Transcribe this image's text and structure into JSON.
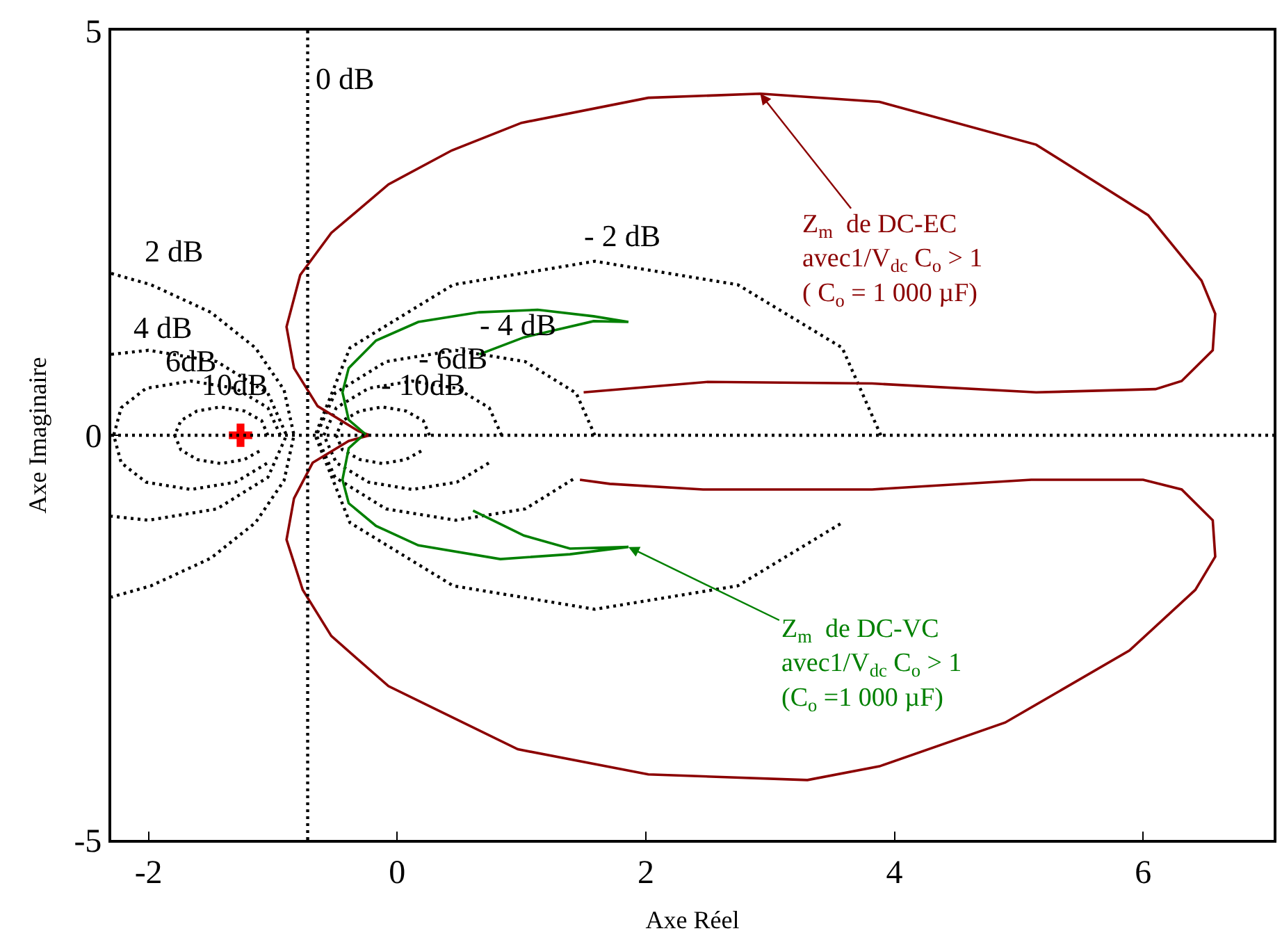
{
  "chart_data": {
    "type": "line",
    "xlabel": "Axe Réel",
    "ylabel": "Axe Imaginaire",
    "xlim": [
      -2.3,
      7.05
    ],
    "ylim": [
      -5,
      5
    ],
    "xticks": [
      -2,
      0,
      2,
      4,
      6
    ],
    "yticks": [
      -5,
      0,
      5
    ],
    "legend": false,
    "series": [
      {
        "name": "2 dB",
        "line_style": "dotted",
        "color": "#000000",
        "x": [
          -2.3,
          -1.98,
          -1.5,
          -1.14,
          -0.91,
          -0.83,
          -0.91,
          -1.14,
          -1.5,
          -1.98,
          -2.3
        ],
        "values": [
          2.0,
          1.86,
          1.52,
          1.08,
          0.56,
          0,
          -0.56,
          -1.08,
          -1.52,
          -1.86,
          -2.0
        ]
      },
      {
        "name": "4 dB",
        "line_style": "dotted",
        "color": "#000000",
        "x": [
          -2.3,
          -2.0,
          -1.45,
          -1.04,
          -0.89,
          -1.04,
          -1.45,
          -2.0,
          -2.3
        ],
        "values": [
          1.0,
          1.05,
          0.91,
          0.52,
          0,
          -0.52,
          -0.91,
          -1.05,
          -1.0
        ]
      },
      {
        "name": "6dB",
        "line_style": "dotted",
        "color": "#000000",
        "x": [
          -0.94,
          -1.04,
          -1.3,
          -1.66,
          -2.02,
          -2.22,
          -2.28,
          -2.22,
          -2.02,
          -1.66,
          -1.3,
          -1.04
        ],
        "values": [
          0,
          0.34,
          0.58,
          0.67,
          0.58,
          0.34,
          0,
          -0.34,
          -0.58,
          -0.67,
          -0.58,
          -0.34
        ]
      },
      {
        "name": "10dB",
        "line_style": "dotted",
        "color": "#000000",
        "x": [
          -1.04,
          -1.09,
          -1.23,
          -1.42,
          -1.61,
          -1.74,
          -1.79,
          -1.74,
          -1.61,
          -1.42,
          -1.23,
          -1.09
        ],
        "values": [
          0,
          0.18,
          0.3,
          0.35,
          0.3,
          0.18,
          0,
          -0.18,
          -0.3,
          -0.35,
          -0.3,
          -0.18
        ]
      },
      {
        "name": "- 2 dB",
        "line_style": "dotted",
        "color": "#000000",
        "x": [
          3.89,
          3.58,
          2.74,
          1.59,
          0.45,
          -0.38,
          -0.66,
          -0.38,
          0.45,
          1.59,
          2.74,
          3.58
        ],
        "values": [
          0,
          1.08,
          1.86,
          2.15,
          1.86,
          1.08,
          0,
          -1.08,
          -1.86,
          -2.15,
          -1.86,
          -1.08
        ]
      },
      {
        "name": "- 4 dB",
        "line_style": "dotted",
        "color": "#000000",
        "x": [
          1.59,
          1.44,
          1.03,
          0.47,
          -0.09,
          -0.5,
          -0.65,
          -0.5,
          -0.09,
          0.47,
          1.03,
          1.44
        ],
        "values": [
          0,
          0.52,
          0.91,
          1.05,
          0.91,
          0.52,
          0,
          -0.52,
          -0.91,
          -1.05,
          -0.91,
          -0.52
        ]
      },
      {
        "name": "- 6dB",
        "line_style": "dotted",
        "color": "#000000",
        "x": [
          0.84,
          0.74,
          0.48,
          0.12,
          -0.23,
          -0.49,
          -0.59,
          -0.49,
          -0.23,
          0.12,
          0.48,
          0.74
        ],
        "values": [
          0,
          0.34,
          0.58,
          0.67,
          0.58,
          0.34,
          0,
          -0.34,
          -0.58,
          -0.67,
          -0.58,
          -0.34
        ]
      },
      {
        "name": "- 10dB",
        "line_style": "dotted",
        "color": "#000000",
        "x": [
          0.26,
          0.21,
          0.07,
          -0.12,
          -0.3,
          -0.44,
          -0.49,
          -0.44,
          -0.3,
          -0.12,
          0.07,
          0.21
        ],
        "values": [
          0,
          0.18,
          0.3,
          0.35,
          0.3,
          0.18,
          0,
          -0.18,
          -0.3,
          -0.35,
          -0.3,
          -0.18
        ]
      },
      {
        "name": "Z$_{m}$  de DC-EC\navec1/V$_{dc}$ C$_{o}$ > 1\n( C$_{o}$ = 1 000 µF)",
        "line_style": "solid",
        "color": "#8b0000",
        "x": [
          1.5,
          2.5,
          3.82,
          5.14,
          6.1,
          6.31,
          6.56,
          6.58,
          6.47,
          6.04,
          5.14,
          3.88,
          2.92,
          2.02,
          1.0,
          0.44,
          -0.07,
          -0.53,
          -0.78,
          -0.89,
          -0.83,
          -0.64,
          -0.31,
          -0.22,
          -0.39,
          -0.68,
          -0.83,
          -0.89,
          -0.76,
          -0.53,
          -0.07,
          0.97,
          2.02,
          3.3,
          3.88,
          4.89,
          5.89,
          6.42,
          6.58,
          6.56,
          6.31,
          6.0,
          5.1,
          3.82,
          2.46,
          1.71,
          1.47
        ],
        "values": [
          0.53,
          0.66,
          0.64,
          0.53,
          0.57,
          0.67,
          1.05,
          1.5,
          1.91,
          2.72,
          3.59,
          4.12,
          4.22,
          4.17,
          3.86,
          3.52,
          3.1,
          2.5,
          1.98,
          1.34,
          0.83,
          0.36,
          0.05,
          0,
          -0.07,
          -0.34,
          -0.78,
          -1.29,
          -1.91,
          -2.48,
          -3.1,
          -3.88,
          -4.19,
          -4.26,
          -4.09,
          -3.55,
          -2.66,
          -1.91,
          -1.5,
          -1.05,
          -0.67,
          -0.55,
          -0.55,
          -0.67,
          -0.67,
          -0.6,
          -0.55
        ]
      },
      {
        "name": "Z$_{m}$  de DC-VC\navec1/V$_{dc}$ C$_{o}$ > 1\n(C$_{o}$ =1 000 µF)",
        "line_style": "solid",
        "color": "#008000",
        "x": [
          0.66,
          1.02,
          1.58,
          1.86,
          1.58,
          1.13,
          0.66,
          0.17,
          -0.17,
          -0.39,
          -0.44,
          -0.39,
          -0.26,
          -0.39,
          -0.44,
          -0.39,
          -0.17,
          0.17,
          0.83,
          1.39,
          1.86,
          1.39,
          1.02,
          0.61
        ],
        "values": [
          1.0,
          1.21,
          1.41,
          1.4,
          1.47,
          1.55,
          1.52,
          1.4,
          1.17,
          0.83,
          0.53,
          0.19,
          0.02,
          -0.16,
          -0.55,
          -0.84,
          -1.12,
          -1.36,
          -1.53,
          -1.47,
          -1.38,
          -1.4,
          -1.24,
          -0.93
        ]
      },
      {
        "type": "scatter",
        "marker": "cross",
        "color": "#ff0000",
        "x": [
          -1.26
        ],
        "values": [
          0
        ]
      }
    ],
    "ref_lines": [
      {
        "axis": "x",
        "value": -0.72,
        "label": "0 dB",
        "line_style": "dotted",
        "color": "#000000"
      },
      {
        "axis": "y",
        "value": 0,
        "line_style": "dotted",
        "color": "#000000"
      }
    ]
  }
}
